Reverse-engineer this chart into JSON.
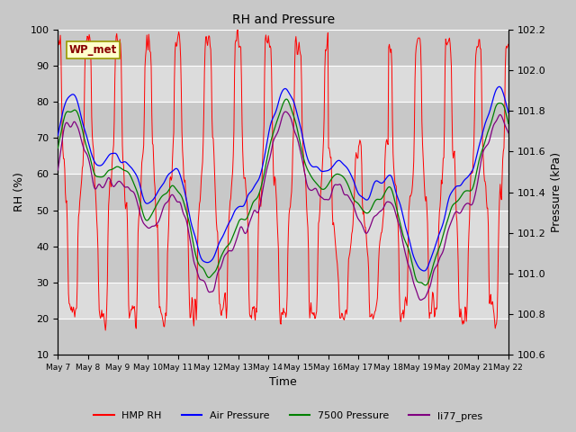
{
  "title": "RH and Pressure",
  "xlabel": "Time",
  "ylabel_left": "RH (%)",
  "ylabel_right": "Pressure (kPa)",
  "ylim_left": [
    10,
    100
  ],
  "ylim_right": [
    100.6,
    102.2
  ],
  "annotation": "WP_met",
  "x_tick_labels": [
    "May 7",
    "May 8",
    "May 9",
    "May 10",
    "May 11",
    "May 12",
    "May 13",
    "May 14",
    "May 15",
    "May 16",
    "May 17",
    "May 18",
    "May 19",
    "May 20",
    "May 21",
    "May 22"
  ],
  "legend_labels": [
    "HMP RH",
    "Air Pressure",
    "7500 Pressure",
    "li77_pres"
  ],
  "line_colors": [
    "red",
    "blue",
    "green",
    "purple"
  ],
  "fig_bg": "#c8c8c8",
  "plot_bg": "#e8e8e8",
  "band_light": "#dcdcdc",
  "band_dark": "#c8c8c8",
  "annotation_bg": "#ffffcc",
  "annotation_edge": "#999900",
  "annotation_text_color": "#880000"
}
